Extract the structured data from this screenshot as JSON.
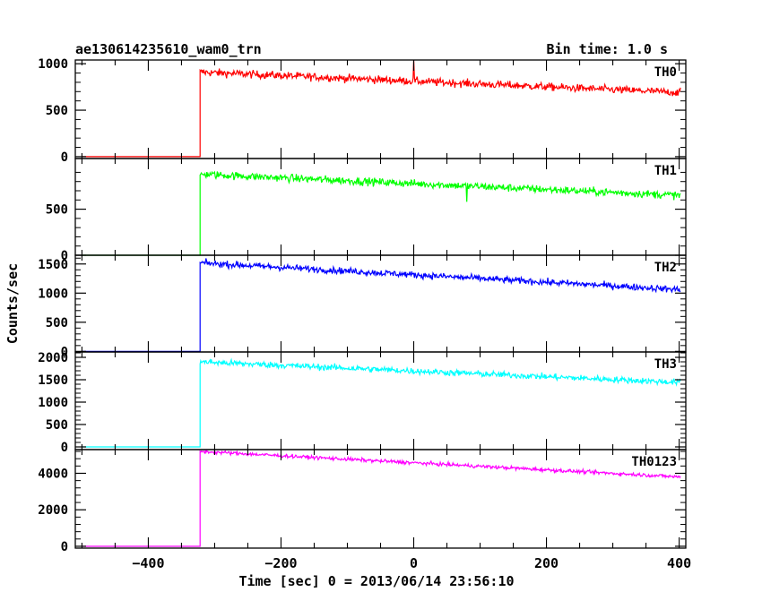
{
  "header": {
    "title": "ae130614235610_wam0_trn",
    "bin_time": "Bin time: 1.0 s"
  },
  "chart_data": {
    "type": "line",
    "xlabel": "Time [sec] 0 = 2013/06/14 23:56:10",
    "ylabel": "Counts/sec",
    "xlim": [
      -510,
      410
    ],
    "x_ticks": [
      -400,
      -200,
      0,
      200,
      400
    ],
    "x_tick_labels": [
      "−400",
      "−200",
      "0",
      "200",
      "400"
    ],
    "trigger_x": -322,
    "x_end": 402,
    "grid": false,
    "panels": [
      {
        "name": "TH0",
        "color": "#ff0000",
        "ylim": [
          -20,
          1040
        ],
        "y_ticks": [
          0,
          500,
          1000
        ],
        "y_tick_labels": [
          "0",
          "500",
          "1000"
        ],
        "baseline": 0,
        "start_level": 910,
        "end_level": 690,
        "noise": 30,
        "spikes": [
          {
            "x": 0,
            "y": 1040
          }
        ]
      },
      {
        "name": "TH1",
        "color": "#00ff00",
        "ylim": [
          0,
          1050
        ],
        "y_ticks": [
          0,
          500
        ],
        "y_tick_labels": [
          "0",
          "500"
        ],
        "baseline": 0,
        "start_level": 880,
        "end_level": 650,
        "noise": 30,
        "spikes": [
          {
            "x": 80,
            "y": 580
          }
        ]
      },
      {
        "name": "TH2",
        "color": "#0000ff",
        "ylim": [
          -10,
          1650
        ],
        "y_ticks": [
          0,
          500,
          1000,
          1500
        ],
        "y_tick_labels": [
          "0",
          "500",
          "1000",
          "1500"
        ],
        "baseline": 0,
        "start_level": 1520,
        "end_level": 1060,
        "noise": 40,
        "spikes": []
      },
      {
        "name": "TH3",
        "color": "#00ffff",
        "ylim": [
          -60,
          2120
        ],
        "y_ticks": [
          0,
          500,
          1000,
          1500,
          2000
        ],
        "y_tick_labels": [
          "0",
          "500",
          "1000",
          "1500",
          "2000"
        ],
        "baseline": 0,
        "start_level": 1900,
        "end_level": 1440,
        "noise": 50,
        "spikes": []
      },
      {
        "name": "TH0123",
        "color": "#ff00ff",
        "ylim": [
          -100,
          5300
        ],
        "y_ticks": [
          0,
          2000,
          4000
        ],
        "y_tick_labels": [
          "0",
          "2000",
          "4000"
        ],
        "baseline": 0,
        "start_level": 5200,
        "end_level": 3800,
        "noise": 70,
        "spikes": []
      }
    ]
  }
}
